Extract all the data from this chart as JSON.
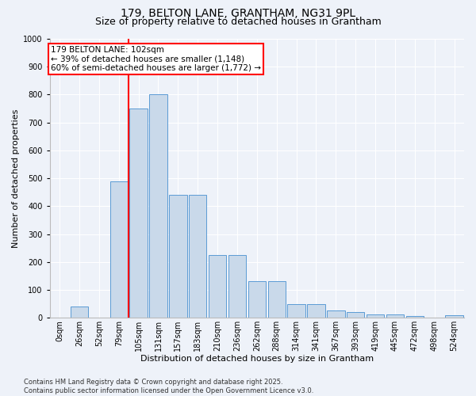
{
  "title_line1": "179, BELTON LANE, GRANTHAM, NG31 9PL",
  "title_line2": "Size of property relative to detached houses in Grantham",
  "xlabel": "Distribution of detached houses by size in Grantham",
  "ylabel": "Number of detached properties",
  "bar_color": "#c9d9ea",
  "bar_edge_color": "#5b9bd5",
  "bin_labels": [
    "0sqm",
    "26sqm",
    "52sqm",
    "79sqm",
    "105sqm",
    "131sqm",
    "157sqm",
    "183sqm",
    "210sqm",
    "236sqm",
    "262sqm",
    "288sqm",
    "314sqm",
    "341sqm",
    "367sqm",
    "393sqm",
    "419sqm",
    "445sqm",
    "472sqm",
    "498sqm",
    "524sqm"
  ],
  "values": [
    0,
    40,
    0,
    490,
    750,
    800,
    440,
    440,
    225,
    225,
    130,
    130,
    50,
    50,
    25,
    20,
    12,
    12,
    5,
    0,
    8
  ],
  "ylim": [
    0,
    1000
  ],
  "yticks": [
    0,
    100,
    200,
    300,
    400,
    500,
    600,
    700,
    800,
    900,
    1000
  ],
  "vline_pos": 4,
  "annotation_text": "179 BELTON LANE: 102sqm\n← 39% of detached houses are smaller (1,148)\n60% of semi-detached houses are larger (1,772) →",
  "annotation_box_color": "white",
  "annotation_edge_color": "red",
  "vline_color": "red",
  "footer_line1": "Contains HM Land Registry data © Crown copyright and database right 2025.",
  "footer_line2": "Contains public sector information licensed under the Open Government Licence v3.0.",
  "bg_color": "#eef2f9",
  "grid_color": "white",
  "title_fontsize": 10,
  "subtitle_fontsize": 9,
  "label_fontsize": 8,
  "tick_fontsize": 7,
  "footer_fontsize": 6,
  "annotation_fontsize": 7.5
}
